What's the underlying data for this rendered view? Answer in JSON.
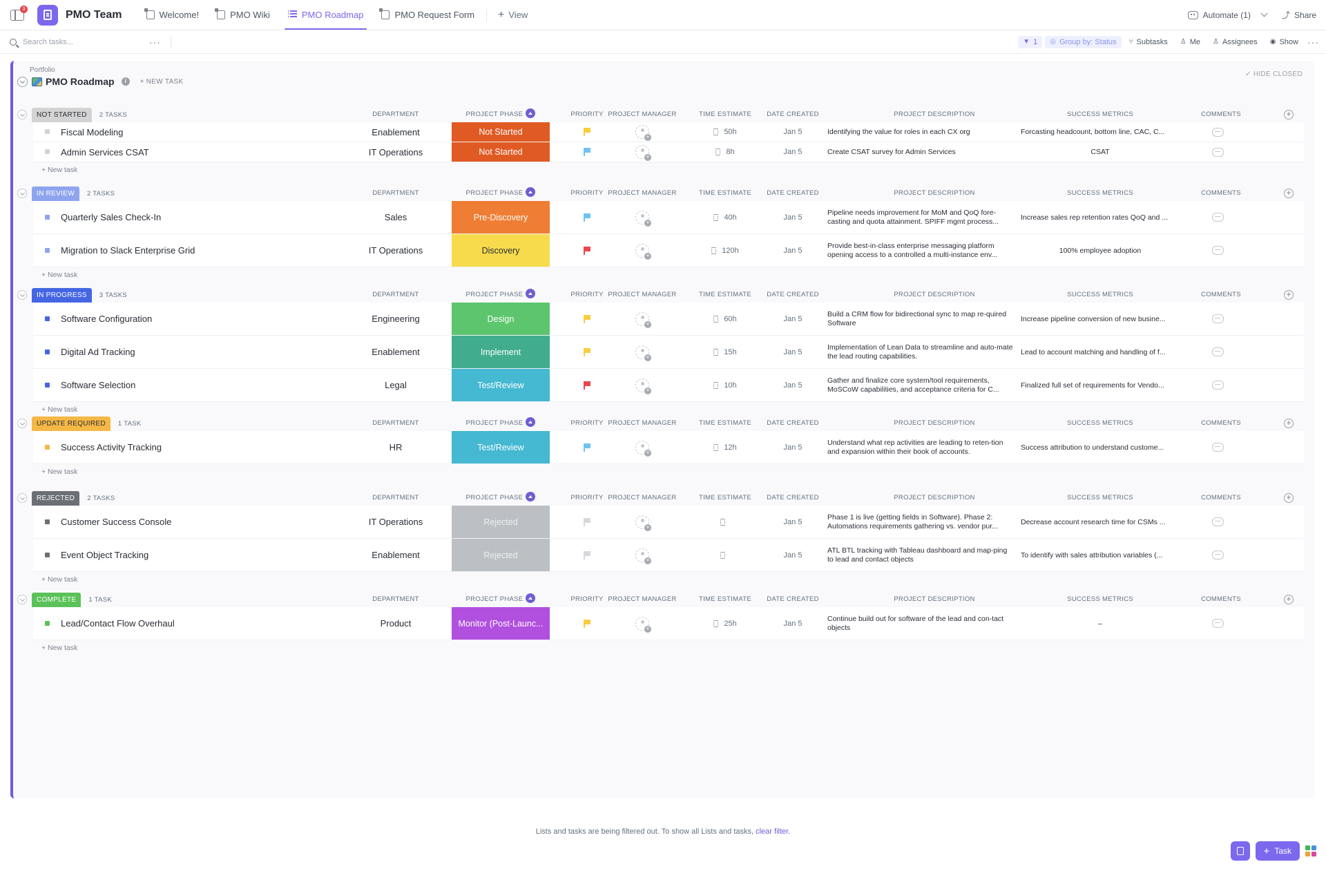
{
  "topbar": {
    "notification_count": "3",
    "space_name": "PMO Team",
    "tabs": [
      {
        "label": "Welcome!",
        "icon": "doc-icon",
        "active": false
      },
      {
        "label": "PMO Wiki",
        "icon": "doc-icon",
        "active": false
      },
      {
        "label": "PMO Roadmap",
        "icon": "list-icon",
        "active": true
      },
      {
        "label": "PMO Request Form",
        "icon": "form-icon",
        "active": false
      }
    ],
    "add_view_label": "View",
    "automate_label": "Automate (1)",
    "share_label": "Share"
  },
  "toolbar": {
    "search_placeholder": "Search tasks...",
    "filter_count": "1",
    "group_by_label": "Group by: Status",
    "subtasks_label": "Subtasks",
    "me_label": "Me",
    "assignees_label": "Assignees",
    "show_label": "Show"
  },
  "list": {
    "breadcrumb": "Portfolio",
    "title": "PMO Roadmap",
    "new_task_label": "+ NEW TASK",
    "hide_closed_label": "✓ HIDE CLOSED"
  },
  "columns": {
    "department": "DEPARTMENT",
    "phase": "PROJECT PHASE",
    "priority": "PRIORITY",
    "pm": "PROJECT MANAGER",
    "time": "TIME ESTIMATE",
    "date": "DATE CREATED",
    "desc": "PROJECT DESCRIPTION",
    "metrics": "SUCCESS METRICS",
    "comments": "COMMENTS"
  },
  "new_task_row_label": "+ New task",
  "groups": [
    {
      "status": "NOT STARTED",
      "count": "2 TASKS",
      "color": "#d3d3d3",
      "text_color": "#292d34",
      "tasks": [
        {
          "name": "Fiscal Modeling",
          "department": "Enablement",
          "phase": "Not Started",
          "phase_color": "#e05a23",
          "priority_color": "#f8cd3f",
          "time": "50h",
          "date": "Jan 5",
          "description": "Identifying the value for roles in each CX org",
          "metrics": "Forcasting headcount, bottom line, CAC, C...",
          "metrics_center": false
        },
        {
          "name": "Admin Services CSAT",
          "department": "IT Operations",
          "phase": "Not Started",
          "phase_color": "#e05a23",
          "priority_color": "#6fc3f0",
          "time": "8h",
          "date": "Jan 5",
          "description": "Create CSAT survey for Admin Services",
          "metrics": "CSAT",
          "metrics_center": true
        }
      ]
    },
    {
      "status": "IN REVIEW",
      "count": "2 TASKS",
      "color": "#8fa4ef",
      "text_color": "#ffffff",
      "tasks": [
        {
          "name": "Quarterly Sales Check-In",
          "department": "Sales",
          "phase": "Pre-Discovery",
          "phase_color": "#f07d34",
          "priority_color": "#6fc3f0",
          "time": "40h",
          "date": "Jan 5",
          "description": "Pipeline needs improvement for MoM and QoQ fore-casting and quota attainment.  SPIFF mgmt process...",
          "metrics": "Increase sales rep retention rates QoQ and ...",
          "metrics_center": false
        },
        {
          "name": "Migration to Slack Enterprise Grid",
          "department": "IT Operations",
          "phase": "Discovery",
          "phase_color": "#f7db4c",
          "phase_text_color": "#292d34",
          "priority_color": "#e5484d",
          "time": "120h",
          "date": "Jan 5",
          "description": "Provide best-in-class enterprise messaging platform opening access to a controlled a multi-instance env...",
          "metrics": "100% employee adoption",
          "metrics_center": true
        }
      ]
    },
    {
      "status": "IN PROGRESS",
      "count": "3 TASKS",
      "color": "#4466e3",
      "text_color": "#ffffff",
      "tasks": [
        {
          "name": "Software Configuration",
          "department": "Engineering",
          "phase": "Design",
          "phase_color": "#5dc56e",
          "priority_color": "#f8cd3f",
          "time": "60h",
          "date": "Jan 5",
          "description": "Build a CRM flow for bidirectional sync to map re-quired Software",
          "metrics": "Increase pipeline conversion of new busine...",
          "metrics_center": false
        },
        {
          "name": "Digital Ad Tracking",
          "department": "Enablement",
          "phase": "Implement",
          "phase_color": "#41ad8e",
          "priority_color": "#f8cd3f",
          "time": "15h",
          "date": "Jan 5",
          "description": "Implementation of Lean Data to streamline and auto-mate the lead routing capabilities.",
          "metrics": "Lead to account matching and handling of f...",
          "metrics_center": false
        },
        {
          "name": "Software Selection",
          "department": "Legal",
          "phase": "Test/Review",
          "phase_color": "#45b8d2",
          "priority_color": "#e5484d",
          "time": "10h",
          "date": "Jan 5",
          "description": "Gather and finalize core system/tool requirements, MoSCoW capabilities, and acceptance criteria for C...",
          "metrics": "Finalized full set of requirements for Vendo...",
          "metrics_center": false
        }
      ]
    },
    {
      "status": "UPDATE REQUIRED",
      "count": "1 TASK",
      "color": "#f5b845",
      "text_color": "#292d34",
      "tasks": [
        {
          "name": "Success Activity Tracking",
          "department": "HR",
          "phase": "Test/Review",
          "phase_color": "#45b8d2",
          "priority_color": "#6fc3f0",
          "time": "12h",
          "date": "Jan 5",
          "description": " Understand what rep activities are leading to reten-tion and expansion within their book of accounts.",
          "metrics": "Success attribution to understand custome...",
          "metrics_center": false
        }
      ]
    },
    {
      "status": "REJECTED",
      "count": "2 TASKS",
      "color": "#6b6f76",
      "text_color": "#ffffff",
      "tasks": [
        {
          "name": "Customer Success Console",
          "department": "IT Operations",
          "phase": "Rejected",
          "phase_color": "#bcbfc3",
          "priority_color": "#d6d8db",
          "time": "",
          "date": "Jan 5",
          "description": "Phase 1 is live (getting fields in Software).  Phase 2: Automations requirements gathering vs. vendor pur...",
          "metrics": "Decrease account research time for CSMs ...",
          "metrics_center": false
        },
        {
          "name": "Event Object Tracking",
          "department": "Enablement",
          "phase": "Rejected",
          "phase_color": "#bcbfc3",
          "priority_color": "#d6d8db",
          "time": "",
          "date": "Jan 5",
          "description": "ATL BTL tracking with Tableau dashboard and map-ping to lead and contact objects",
          "metrics": "To identify with sales attribution variables (...",
          "metrics_center": false
        }
      ]
    },
    {
      "status": "COMPLETE",
      "count": "1 TASK",
      "color": "#5bc259",
      "text_color": "#ffffff",
      "tasks": [
        {
          "name": "Lead/Contact Flow Overhaul",
          "department": "Product",
          "phase": "Monitor (Post-Launc...",
          "phase_color": "#b14fdf",
          "priority_color": "#f8cd3f",
          "time": "25h",
          "date": "Jan 5",
          "description": "Continue build out for software of the lead and con-tact objects",
          "metrics": "–",
          "metrics_center": true
        }
      ]
    }
  ],
  "footer": {
    "message": "Lists and tasks are being filtered out. To show all Lists and tasks, ",
    "link": "clear filter."
  },
  "fab": {
    "task_label": "Task"
  }
}
